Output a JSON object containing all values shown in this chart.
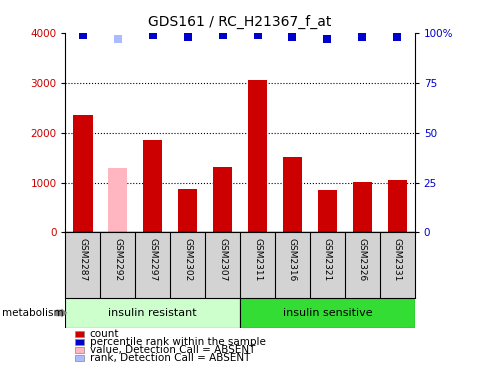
{
  "title": "GDS161 / RC_H21367_f_at",
  "samples": [
    "GSM2287",
    "GSM2292",
    "GSM2297",
    "GSM2302",
    "GSM2307",
    "GSM2311",
    "GSM2316",
    "GSM2321",
    "GSM2326",
    "GSM2331"
  ],
  "counts": [
    2350,
    1300,
    1850,
    880,
    1310,
    3050,
    1510,
    850,
    1020,
    1050
  ],
  "absent_mask": [
    false,
    true,
    false,
    false,
    false,
    false,
    false,
    false,
    false,
    false
  ],
  "percentile_ranks": [
    99,
    97,
    99,
    98,
    99,
    99,
    98,
    97,
    98,
    98
  ],
  "absent_rank_mask": [
    false,
    true,
    false,
    false,
    false,
    false,
    false,
    false,
    false,
    false
  ],
  "ylim_left": [
    0,
    4000
  ],
  "ylim_right": [
    0,
    100
  ],
  "yticks_left": [
    0,
    1000,
    2000,
    3000,
    4000
  ],
  "yticks_right": [
    0,
    25,
    50,
    75,
    100
  ],
  "groups": [
    {
      "label": "insulin resistant",
      "start": 0,
      "end": 5,
      "color": "#ccffcc"
    },
    {
      "label": "insulin sensitive",
      "start": 5,
      "end": 10,
      "color": "#33dd33"
    }
  ],
  "bar_color_present": "#cc0000",
  "bar_color_absent": "#ffb6c1",
  "rank_color_present": "#0000cc",
  "rank_color_absent": "#aabbff",
  "tick_bg_color": "#d3d3d3",
  "background_color": "#ffffff",
  "legend_items": [
    {
      "label": "count",
      "color": "#cc0000"
    },
    {
      "label": "percentile rank within the sample",
      "color": "#0000cc"
    },
    {
      "label": "value, Detection Call = ABSENT",
      "color": "#ffb6c1"
    },
    {
      "label": "rank, Detection Call = ABSENT",
      "color": "#aabbff"
    }
  ],
  "metabolism_label": "metabolism",
  "bar_width": 0.55
}
